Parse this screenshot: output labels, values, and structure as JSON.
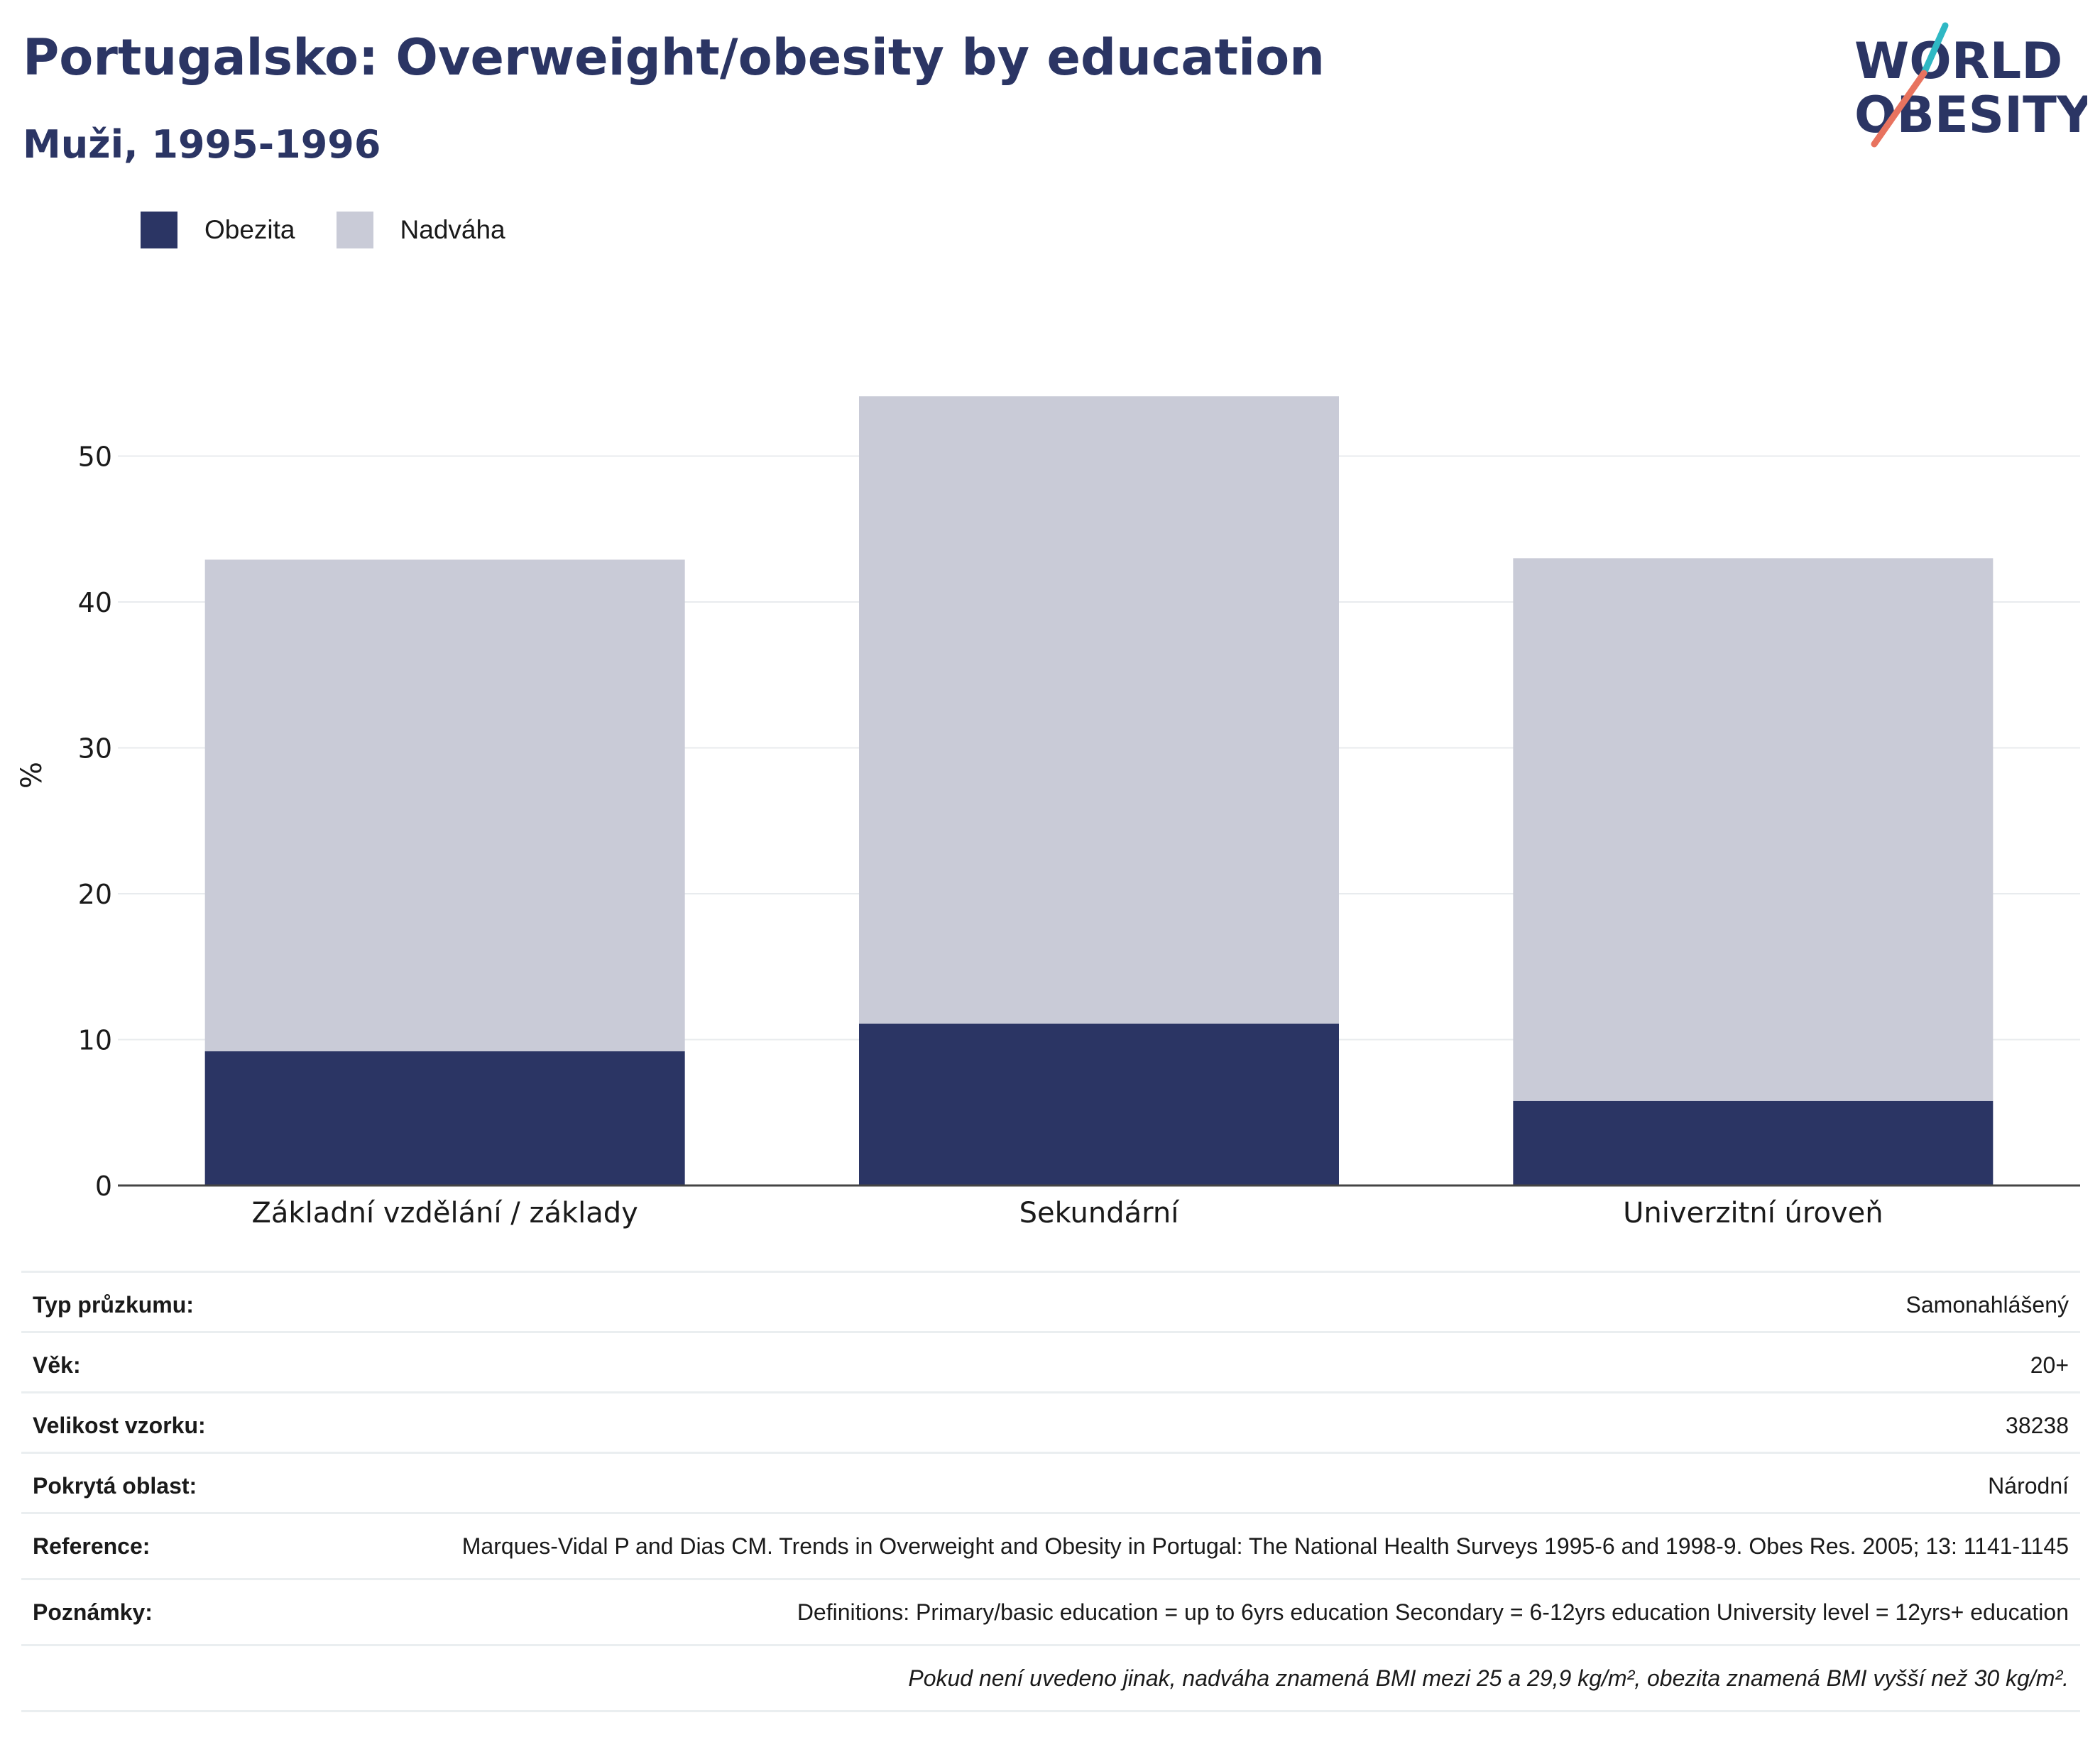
{
  "title": "Portugalsko: Overweight/obesity by education",
  "subtitle": "Muži, 1995-1996",
  "logo": {
    "line1": "WORLD",
    "line2": "OBESITY"
  },
  "legend": [
    {
      "label": "Obezita",
      "color": "#2b3564"
    },
    {
      "label": "Nadváha",
      "color": "#c9cbd7"
    }
  ],
  "chart_data": {
    "type": "bar",
    "stacked": true,
    "categories": [
      "Základní vzdělání / základy",
      "Sekundární",
      "Univerzitní úroveň"
    ],
    "series": [
      {
        "name": "Obezita",
        "values": [
          9.2,
          11.1,
          5.8
        ],
        "color": "#2b3564"
      },
      {
        "name": "Nadváha",
        "values": [
          33.7,
          43.0,
          37.2
        ],
        "color": "#c9cbd7"
      }
    ],
    "ylabel": "%",
    "ylim": [
      0,
      60
    ],
    "yticks": [
      0,
      10,
      20,
      30,
      40,
      50
    ],
    "grid": true,
    "legend_position": "top-left"
  },
  "info": [
    {
      "key": "Typ průzkumu:",
      "value": "Samonahlášený"
    },
    {
      "key": "Věk:",
      "value": "20+"
    },
    {
      "key": "Velikost vzorku:",
      "value": "38238"
    },
    {
      "key": "Pokrytá oblast:",
      "value": "Národní"
    },
    {
      "key": "Reference:",
      "value": "Marques-Vidal P and Dias CM. Trends in Overweight and Obesity in Portugal: The National Health Surveys 1995-6 and 1998-9. Obes Res. 2005; 13: 1141-1145"
    },
    {
      "key": "Poznámky:",
      "value": "Definitions: Primary/basic education = up to 6yrs education Secondary = 6-12yrs education University level = 12yrs+ education"
    }
  ],
  "footnote": "Pokud není uvedeno jinak, nadváha znamená BMI mezi 25 a 29,9 kg/m², obezita znamená BMI vyšší než 30 kg/m²."
}
